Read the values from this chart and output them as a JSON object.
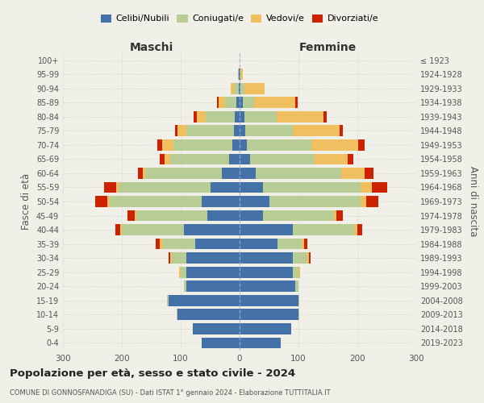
{
  "age_groups": [
    "0-4",
    "5-9",
    "10-14",
    "15-19",
    "20-24",
    "25-29",
    "30-34",
    "35-39",
    "40-44",
    "45-49",
    "50-54",
    "55-59",
    "60-64",
    "65-69",
    "70-74",
    "75-79",
    "80-84",
    "85-89",
    "90-94",
    "95-99",
    "100+"
  ],
  "birth_years": [
    "2019-2023",
    "2014-2018",
    "2009-2013",
    "2004-2008",
    "1999-2003",
    "1994-1998",
    "1989-1993",
    "1984-1988",
    "1979-1983",
    "1974-1978",
    "1969-1973",
    "1964-1968",
    "1959-1963",
    "1954-1958",
    "1949-1953",
    "1944-1948",
    "1939-1943",
    "1934-1938",
    "1929-1933",
    "1924-1928",
    "≤ 1923"
  ],
  "maschi": {
    "celibi": [
      65,
      80,
      105,
      120,
      90,
      90,
      90,
      75,
      95,
      55,
      65,
      50,
      30,
      18,
      12,
      10,
      8,
      5,
      2,
      1,
      0
    ],
    "coniugati": [
      0,
      0,
      2,
      3,
      5,
      10,
      25,
      55,
      105,
      120,
      155,
      155,
      130,
      100,
      100,
      80,
      50,
      20,
      8,
      2,
      0
    ],
    "vedovi": [
      0,
      0,
      0,
      0,
      0,
      3,
      3,
      5,
      3,
      3,
      5,
      5,
      5,
      10,
      20,
      15,
      15,
      10,
      5,
      0,
      0
    ],
    "divorziati": [
      0,
      0,
      0,
      0,
      0,
      0,
      3,
      8,
      8,
      12,
      20,
      20,
      8,
      8,
      8,
      5,
      5,
      3,
      0,
      0,
      0
    ]
  },
  "femmine": {
    "nubili": [
      70,
      88,
      100,
      100,
      95,
      90,
      90,
      65,
      90,
      40,
      50,
      40,
      28,
      18,
      12,
      10,
      8,
      5,
      2,
      1,
      0
    ],
    "coniugate": [
      0,
      0,
      2,
      2,
      5,
      10,
      25,
      40,
      105,
      120,
      155,
      165,
      145,
      110,
      110,
      80,
      55,
      20,
      6,
      0,
      0
    ],
    "vedove": [
      0,
      0,
      0,
      0,
      0,
      3,
      3,
      5,
      5,
      5,
      10,
      20,
      40,
      55,
      80,
      80,
      80,
      70,
      35,
      5,
      0
    ],
    "divorziate": [
      0,
      0,
      0,
      0,
      0,
      0,
      3,
      5,
      8,
      10,
      20,
      25,
      15,
      10,
      10,
      5,
      5,
      3,
      0,
      0,
      0
    ]
  },
  "colors": {
    "celibi": "#4472a8",
    "coniugati": "#b8cc96",
    "vedovi": "#f0c060",
    "divorziati": "#cc2200"
  },
  "xlim": 300,
  "title": "Popolazione per età, sesso e stato civile - 2024",
  "subtitle": "COMUNE DI GONNOSFANADIGA (SU) - Dati ISTAT 1° gennaio 2024 - Elaborazione TUTTITALIA.IT",
  "ylabel_left": "Fasce di età",
  "ylabel_right": "Anni di nascita",
  "xlabel_left": "Maschi",
  "xlabel_right": "Femmine",
  "bg_color": "#f0f0e8",
  "grid_color": "#cccccc"
}
